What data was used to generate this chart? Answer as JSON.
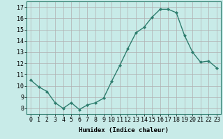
{
  "x": [
    0,
    1,
    2,
    3,
    4,
    5,
    6,
    7,
    8,
    9,
    10,
    11,
    12,
    13,
    14,
    15,
    16,
    17,
    18,
    19,
    20,
    21,
    22,
    23
  ],
  "y": [
    10.5,
    9.9,
    9.5,
    8.5,
    8.0,
    8.5,
    7.9,
    8.3,
    8.5,
    8.9,
    10.4,
    11.8,
    13.3,
    14.7,
    15.2,
    16.1,
    16.8,
    16.8,
    16.5,
    14.5,
    13.0,
    12.1,
    12.2,
    11.6
  ],
  "line_color": "#2e7d6e",
  "marker": "D",
  "marker_size": 2.0,
  "bg_color": "#c8ebe8",
  "grid_color": "#b0b0b0",
  "xlabel": "Humidex (Indice chaleur)",
  "ylabel_ticks": [
    8,
    9,
    10,
    11,
    12,
    13,
    14,
    15,
    16,
    17
  ],
  "xlim": [
    -0.5,
    23.5
  ],
  "ylim": [
    7.5,
    17.5
  ],
  "xticks": [
    0,
    1,
    2,
    3,
    4,
    5,
    6,
    7,
    8,
    9,
    10,
    11,
    12,
    13,
    14,
    15,
    16,
    17,
    18,
    19,
    20,
    21,
    22,
    23
  ],
  "font_size_xlabel": 6.5,
  "font_size_ticks": 6.0,
  "line_width": 1.0
}
